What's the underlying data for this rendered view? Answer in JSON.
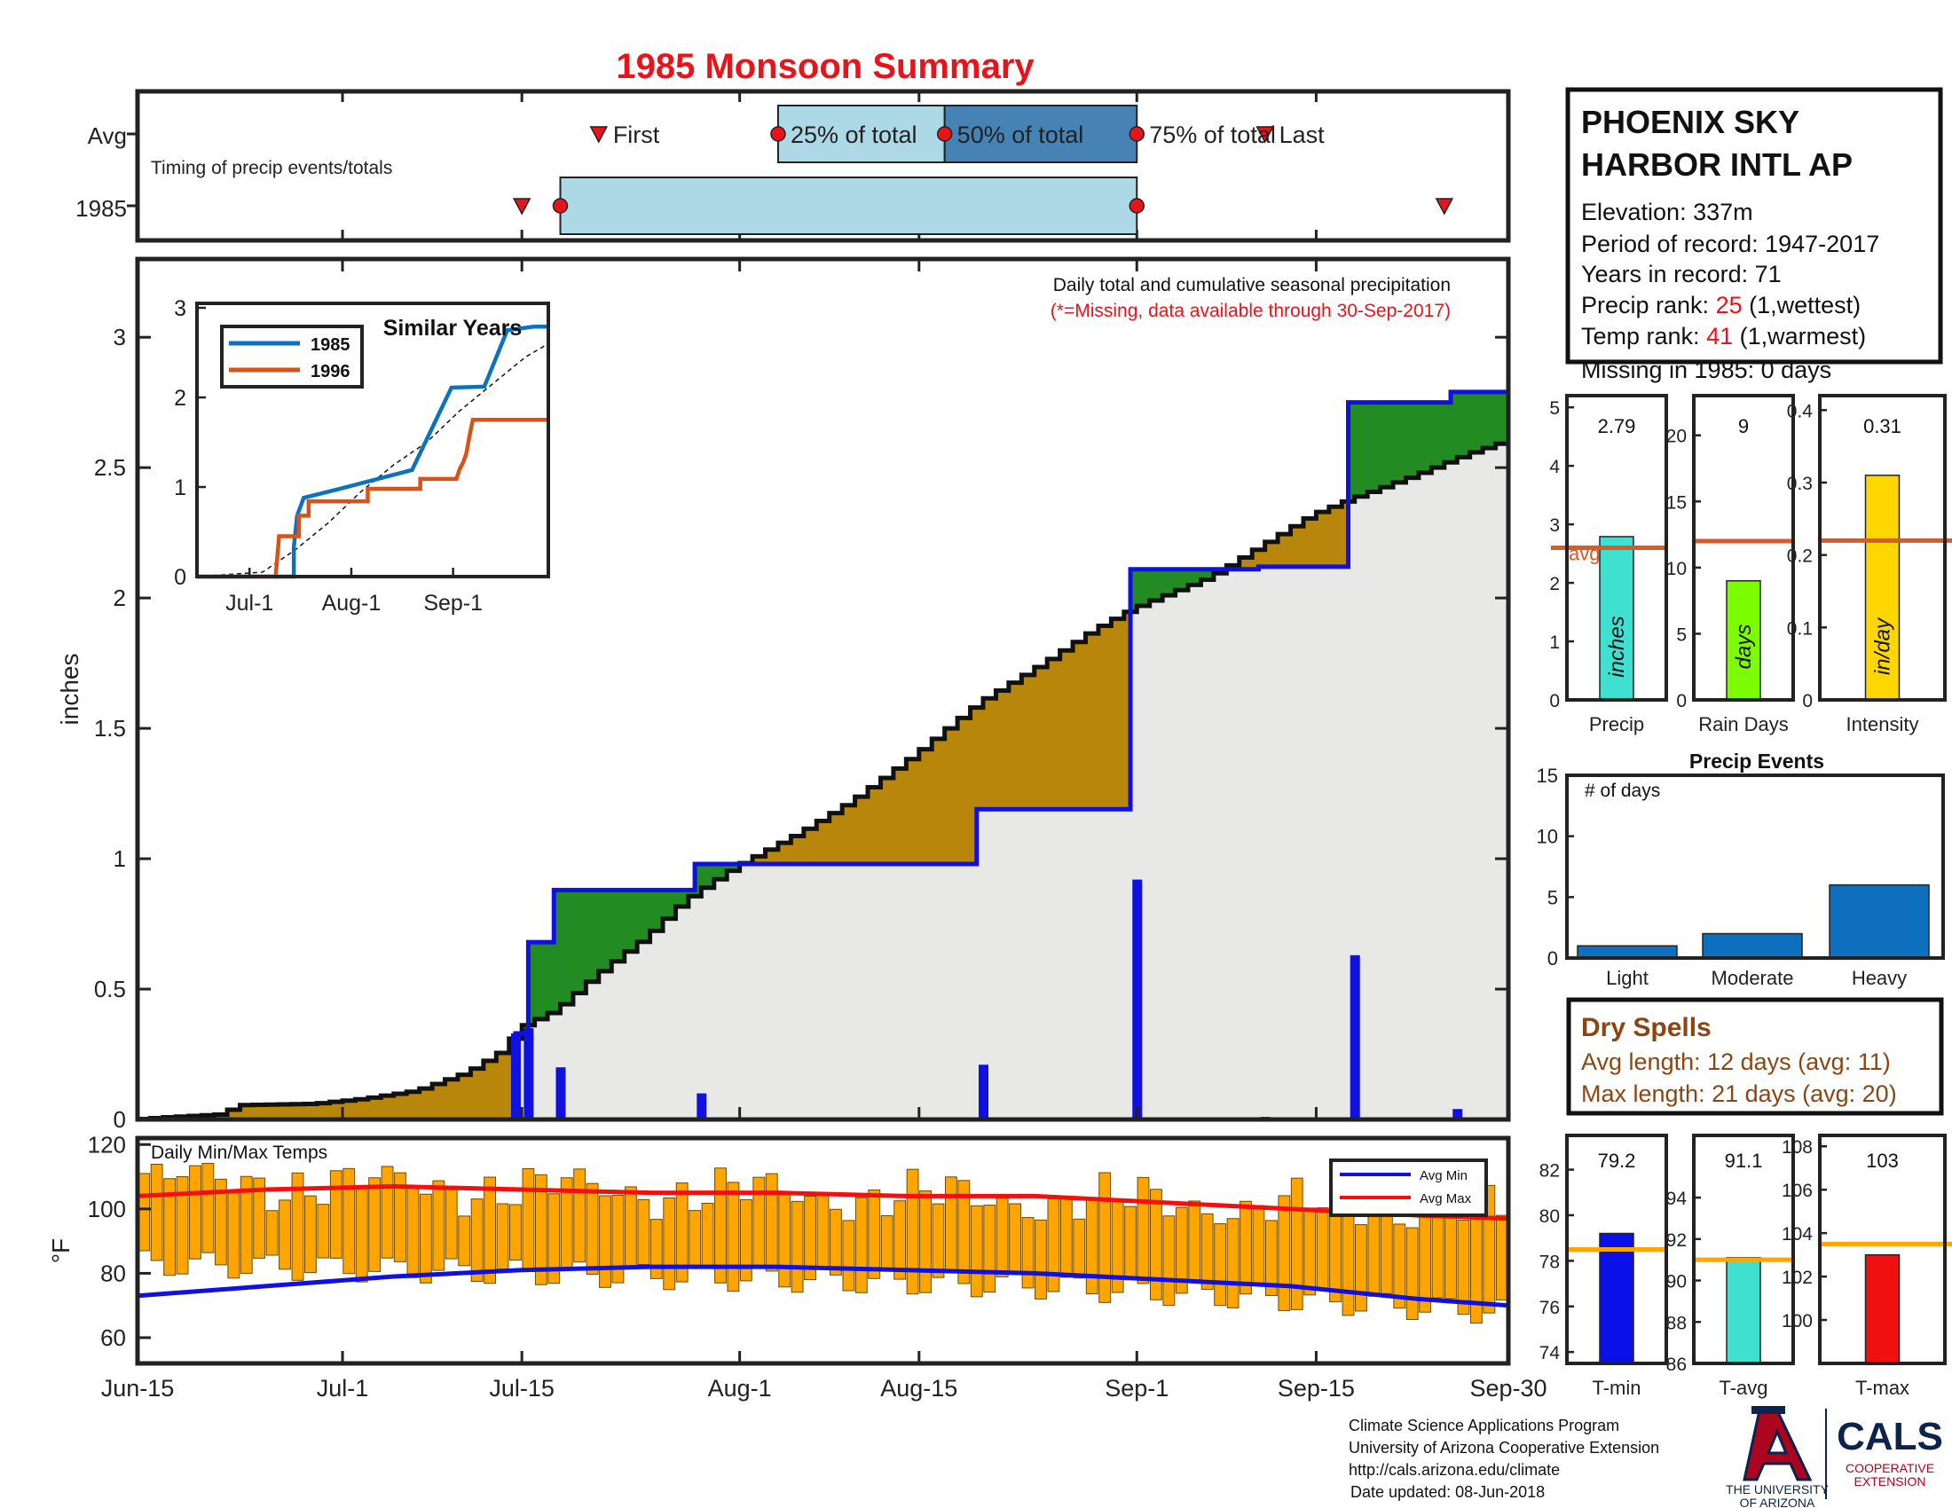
{
  "title": "1985 Monsoon Summary",
  "colors": {
    "title": "#e8141b",
    "green": "#228b22",
    "brown": "#b8860b",
    "blueline": "#1010e0",
    "gray": "#e8e8e6",
    "dry": "#8b4513",
    "orange_line": "#d85a28",
    "temp_bar": "#ffa500",
    "temp_bar_edge": "#6b4a00",
    "timing_light": "#add8e6",
    "timing_dark": "#4682b4",
    "event_bar": "#0d6fbd"
  },
  "timing": {
    "row_labels": [
      "Avg",
      "1985"
    ],
    "caption": "Timing of precip events/totals",
    "first_label": "First",
    "pct25_label": "25% of total",
    "pct50_label": "50% of total",
    "pct75_label": "75% of total",
    "last_label": "Last",
    "avg": {
      "first": 36,
      "p25": 50,
      "p50": 63,
      "p75": 78,
      "last": 88
    },
    "y1985": {
      "first": 30,
      "p25": 33,
      "p75": 78,
      "last": 102
    }
  },
  "station": {
    "name_line1": "PHOENIX SKY",
    "name_line2": "HARBOR INTL AP",
    "elevation": "Elevation: 337m",
    "period": "Period of record: 1947-2017",
    "years": "Years in record: 71",
    "precip_rank_label": "Precip rank: ",
    "precip_rank_value": "25",
    "precip_rank_note": " (1,wettest)",
    "temp_rank_label": "Temp rank: ",
    "temp_rank_value": "41",
    "temp_rank_note": " (1,warmest)",
    "missing": "Missing in 1985: 0 days"
  },
  "main_chart": {
    "ylabel": "inches",
    "caption1": "Daily total and cumulative seasonal precipitation",
    "caption2": "(*=Missing, data available through 30-Sep-2017)",
    "x_ticks": [
      {
        "label": "Jun-15",
        "day": 0
      },
      {
        "label": "Jul-1",
        "day": 16
      },
      {
        "label": "Jul-15",
        "day": 30
      },
      {
        "label": "Aug-1",
        "day": 47
      },
      {
        "label": "Aug-15",
        "day": 61
      },
      {
        "label": "Sep-1",
        "day": 78
      },
      {
        "label": "Sep-15",
        "day": 92
      },
      {
        "label": "Sep-30",
        "day": 107
      }
    ],
    "y_ticks": [
      "0",
      "0.5",
      "1",
      "1.5",
      "2",
      "2.5",
      "3"
    ],
    "ylim": [
      0,
      3.3
    ],
    "xlim": [
      0,
      107
    ]
  },
  "chart_data": [
    {
      "type": "line",
      "name": "cumulative",
      "cumulative_1985": [
        [
          0,
          0
        ],
        [
          29.5,
          0
        ],
        [
          29.5,
          0.33
        ],
        [
          30.5,
          0.33
        ],
        [
          30.5,
          0.68
        ],
        [
          32.5,
          0.68
        ],
        [
          32.5,
          0.88
        ],
        [
          43.5,
          0.88
        ],
        [
          43.5,
          0.98
        ],
        [
          65.5,
          0.98
        ],
        [
          65.5,
          1.19
        ],
        [
          77.5,
          1.19
        ],
        [
          77.5,
          2.11
        ],
        [
          87.5,
          2.11
        ],
        [
          87.5,
          2.12
        ],
        [
          94.5,
          2.12
        ],
        [
          94.5,
          2.75
        ],
        [
          102.5,
          2.75
        ],
        [
          102.5,
          2.79
        ],
        [
          107,
          2.79
        ]
      ],
      "avg_start": [
        [
          0,
          0
        ],
        [
          3,
          0.01
        ],
        [
          7,
          0.02
        ],
        [
          8,
          0.055
        ],
        [
          14,
          0.06
        ],
        [
          18,
          0.08
        ],
        [
          22,
          0.11
        ],
        [
          26,
          0.18
        ],
        [
          29,
          0.27
        ],
        [
          30,
          0.35
        ],
        [
          33,
          0.42
        ],
        [
          36,
          0.55
        ],
        [
          40,
          0.7
        ],
        [
          43,
          0.84
        ],
        [
          47,
          0.97
        ],
        [
          52,
          1.1
        ],
        [
          56,
          1.22
        ],
        [
          61,
          1.4
        ],
        [
          66,
          1.6
        ],
        [
          71,
          1.75
        ],
        [
          75,
          1.88
        ],
        [
          78,
          1.96
        ],
        [
          84,
          2.08
        ],
        [
          88,
          2.2
        ],
        [
          92,
          2.32
        ],
        [
          95,
          2.38
        ],
        [
          100,
          2.47
        ],
        [
          104,
          2.55
        ],
        [
          107,
          2.6
        ]
      ]
    },
    {
      "type": "bar",
      "name": "daily precip",
      "x": [
        29.5,
        30.5,
        33,
        44,
        66,
        78,
        88,
        95,
        103
      ],
      "values": [
        0.33,
        0.35,
        0.2,
        0.1,
        0.21,
        0.92,
        0.01,
        0.63,
        0.04
      ]
    },
    {
      "type": "line",
      "name": "similar years",
      "title": "Similar Years",
      "series": [
        {
          "name": "1985",
          "color": "#0d72bd",
          "points": [
            [
              0,
              0
            ],
            [
              29.5,
              0
            ],
            [
              29.5,
              0.33
            ],
            [
              30.5,
              0.68
            ],
            [
              32.5,
              0.88
            ],
            [
              43.5,
              0.98
            ],
            [
              65.5,
              1.19
            ],
            [
              77.5,
              2.11
            ],
            [
              87.5,
              2.12
            ],
            [
              94.5,
              2.75
            ],
            [
              102.5,
              2.79
            ],
            [
              107,
              2.79
            ]
          ]
        },
        {
          "name": "1996",
          "color": "#d95319",
          "points": [
            [
              0,
              0
            ],
            [
              24,
              0
            ],
            [
              24,
              0.02
            ],
            [
              25,
              0.45
            ],
            [
              31,
              0.45
            ],
            [
              31,
              0.68
            ],
            [
              34,
              0.68
            ],
            [
              34,
              0.84
            ],
            [
              52,
              0.84
            ],
            [
              52,
              0.98
            ],
            [
              68,
              0.98
            ],
            [
              68,
              1.09
            ],
            [
              79,
              1.09
            ],
            [
              80,
              1.2
            ],
            [
              81,
              1.27
            ],
            [
              82,
              1.37
            ],
            [
              83,
              1.57
            ],
            [
              84,
              1.75
            ],
            [
              90,
              1.75
            ],
            [
              107,
              1.75
            ]
          ]
        }
      ],
      "dashed_avg": [
        [
          0,
          0
        ],
        [
          20,
          0.05
        ],
        [
          30,
          0.3
        ],
        [
          40,
          0.6
        ],
        [
          50,
          0.95
        ],
        [
          60,
          1.25
        ],
        [
          70,
          1.5
        ],
        [
          80,
          1.85
        ],
        [
          90,
          2.15
        ],
        [
          100,
          2.45
        ],
        [
          107,
          2.6
        ]
      ],
      "x_ticks": [
        {
          "label": "Jul-1",
          "day": 16
        },
        {
          "label": "Aug-1",
          "day": 47
        },
        {
          "label": "Sep-1",
          "day": 78
        }
      ],
      "y_ticks": [
        "0",
        "1",
        "2",
        "3"
      ]
    },
    {
      "type": "bar",
      "name": "summary bars",
      "panels": [
        {
          "label": "Precip",
          "unit": "inches",
          "value": 2.79,
          "value_label": "2.79",
          "avg": 2.6,
          "avg_label": "avg",
          "ylim": [
            0,
            5.2
          ],
          "ticks": [
            "0",
            "1",
            "2",
            "3",
            "4",
            "5"
          ],
          "tick_values": [
            0,
            1,
            2,
            3,
            4,
            5
          ],
          "color": "#40e0d0"
        },
        {
          "label": "Rain Days",
          "unit": "days",
          "value": 9,
          "value_label": "9",
          "avg": 12,
          "ylim": [
            0,
            23
          ],
          "ticks": [
            "0",
            "5",
            "10",
            "15",
            "20"
          ],
          "tick_values": [
            0,
            5,
            10,
            15,
            20
          ],
          "color": "#7cfc00"
        },
        {
          "label": "Intensity",
          "unit": "in/day",
          "value": 0.31,
          "value_label": "0.31",
          "avg": 0.22,
          "ylim": [
            0,
            0.42
          ],
          "ticks": [
            "0",
            "0.1",
            "0.2",
            "0.3",
            "0.4"
          ],
          "tick_values": [
            0,
            0.1,
            0.2,
            0.3,
            0.4
          ],
          "color": "#ffd700"
        }
      ]
    },
    {
      "type": "bar",
      "name": "precip events",
      "title": "Precip Events",
      "ylabel": "# of days",
      "categories": [
        "Light",
        "Moderate",
        "Heavy"
      ],
      "values": [
        1,
        2,
        6
      ],
      "ylim": [
        0,
        15
      ],
      "y_ticks": [
        "0",
        "5",
        "10",
        "15"
      ]
    },
    {
      "type": "bar",
      "name": "daily temps",
      "title": "Daily Min/Max Temps",
      "ylabel": "°F",
      "ylim": [
        52,
        122
      ],
      "y_ticks": [
        "60",
        "80",
        "100",
        "120"
      ],
      "legend": [
        "Avg Min",
        "Avg Max"
      ],
      "avg_min": [
        [
          0,
          73
        ],
        [
          10,
          76
        ],
        [
          20,
          79
        ],
        [
          30,
          81
        ],
        [
          40,
          82
        ],
        [
          50,
          82
        ],
        [
          60,
          81
        ],
        [
          70,
          80
        ],
        [
          80,
          78
        ],
        [
          90,
          76
        ],
        [
          100,
          72
        ],
        [
          107,
          70
        ]
      ],
      "avg_max": [
        [
          0,
          104
        ],
        [
          10,
          106
        ],
        [
          20,
          107
        ],
        [
          30,
          106
        ],
        [
          40,
          105
        ],
        [
          50,
          105
        ],
        [
          60,
          104
        ],
        [
          70,
          104
        ],
        [
          80,
          102
        ],
        [
          90,
          100
        ],
        [
          100,
          98
        ],
        [
          107,
          97
        ]
      ]
    },
    {
      "type": "bar",
      "name": "temp summary",
      "panels": [
        {
          "label": "T-min",
          "value": 79.2,
          "value_label": "79.2",
          "avg": 78.5,
          "ylim": [
            73.5,
            83.5
          ],
          "ticks": [
            "74",
            "76",
            "78",
            "80",
            "82"
          ],
          "tick_values": [
            74,
            76,
            78,
            80,
            82
          ],
          "color": "#0a10e8"
        },
        {
          "label": "T-avg",
          "value": 91.1,
          "value_label": "91.1",
          "avg": 91.0,
          "ylim": [
            86,
            97
          ],
          "ticks": [
            "86",
            "88",
            "90",
            "92",
            "94"
          ],
          "tick_values": [
            86,
            88,
            90,
            92,
            94
          ],
          "color": "#40e0d0"
        },
        {
          "label": "T-max",
          "value": 103,
          "value_label": "103",
          "avg": 103.5,
          "ylim": [
            98,
            108.5
          ],
          "ticks": [
            "100",
            "102",
            "104",
            "106",
            "108"
          ],
          "tick_values": [
            100,
            102,
            104,
            106,
            108
          ],
          "color": "#f01010"
        }
      ]
    }
  ],
  "dry_spells": {
    "title": "Dry Spells",
    "avg_length": "Avg length: 12 days (avg: 11)",
    "max_length": "Max length: 21 days (avg: 20)"
  },
  "footer": {
    "line1": "Climate Science Applications Program",
    "line2": "University of Arizona Cooperative Extension",
    "line3": "http://cals.arizona.edu/climate",
    "line4": "Date updated: 08-Jun-2018",
    "ua_line1": "THE UNIVERSITY",
    "ua_line2": "OF ARIZONA",
    "cals": "CALS",
    "cals_sub1": "COOPERATIVE",
    "cals_sub2": "EXTENSION"
  }
}
